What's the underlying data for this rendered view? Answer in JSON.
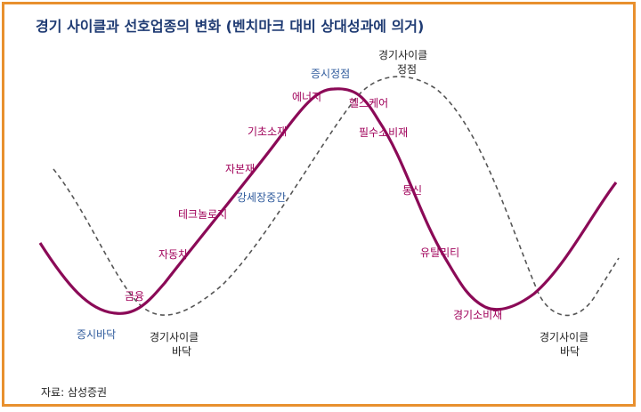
{
  "title": "경기 사이클과 선호업종의 변화 (벤치마크 대비 상대성과에 의거)",
  "source": "자료: 삼성증권",
  "colors": {
    "frame_border": "#e8902e",
    "title": "#1f3b73",
    "market_curve": "#8b0a57",
    "economy_curve": "#555555",
    "sector_label": "#a0005a",
    "market_label": "#2e5a9c",
    "economy_label": "#222222"
  },
  "sectors": {
    "finance": "금융",
    "auto": "자동차",
    "tech_hardware": "테크놀로지",
    "capital_goods": "자본재",
    "materials": "기초소재",
    "energy": "에너지",
    "healthcare": "헬스케어",
    "consumer_staples": "필수소비재",
    "telecom": "통신",
    "utilities": "유틸리티",
    "consumer_discretionary": "경기소비재"
  },
  "market_labels": {
    "market_bottom": "증시바닥",
    "market_peak": "증시정점",
    "strong_rise": "강세장중간"
  },
  "economy_labels": {
    "cycle_peak_line1": "경기사이클",
    "cycle_peak_line2": "정점",
    "cycle_bottom1_line1": "경기사이클",
    "cycle_bottom1_line2": "바닥",
    "cycle_bottom2_line1": "경기사이클",
    "cycle_bottom2_line2": "바닥"
  }
}
